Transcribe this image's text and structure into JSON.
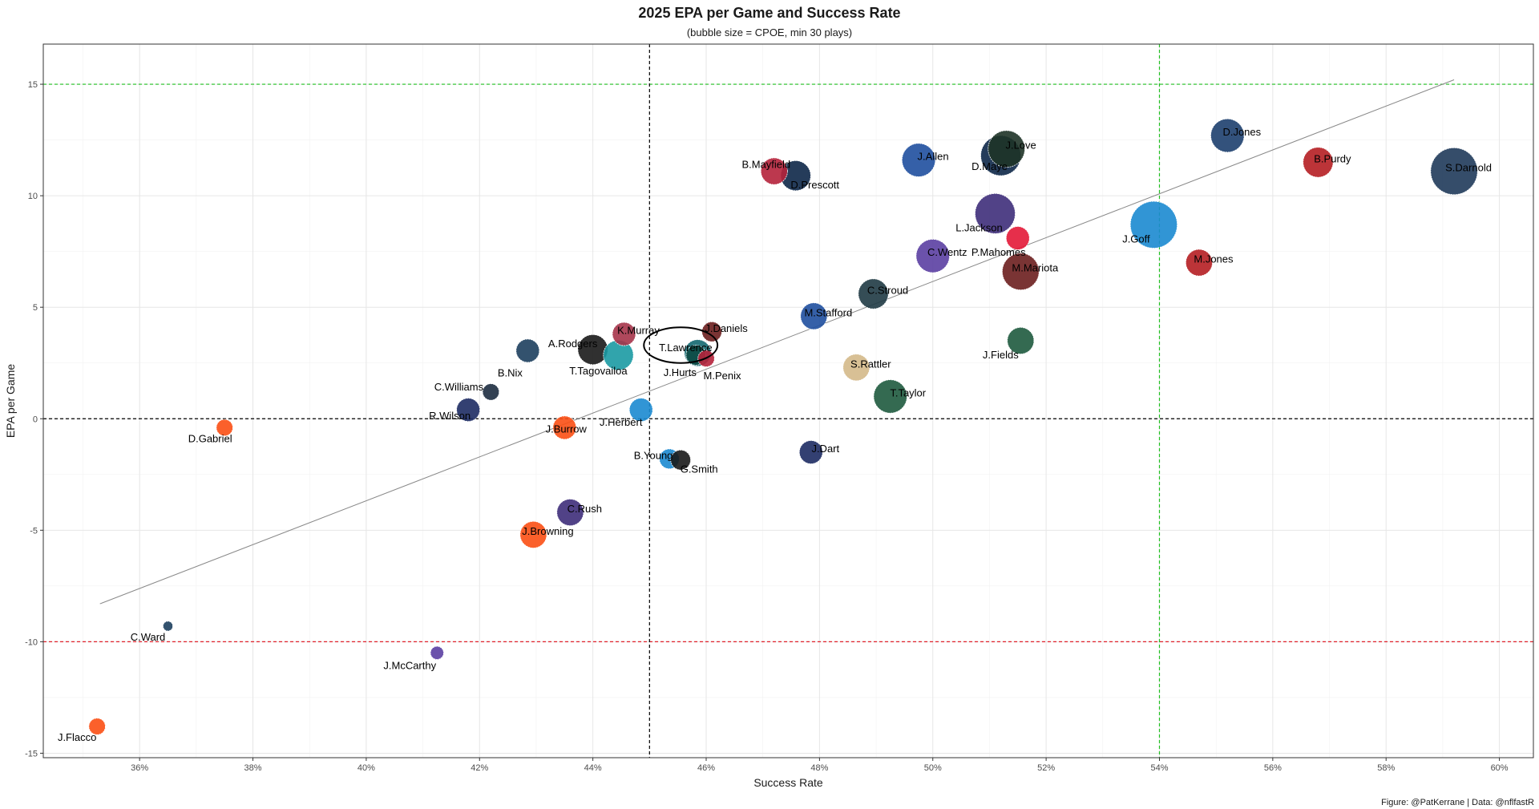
{
  "chart_data": {
    "type": "scatter",
    "title": "2025 EPA per Game and Success Rate",
    "subtitle": "(bubble size = CPOE, min 30 plays)",
    "xlabel": "Success Rate",
    "ylabel": "EPA per Game",
    "xlim": [
      0.343,
      0.606
    ],
    "ylim": [
      -15.2,
      16.8
    ],
    "x_ticks": [
      0.36,
      0.38,
      0.4,
      0.42,
      0.44,
      0.46,
      0.48,
      0.5,
      0.52,
      0.54,
      0.56,
      0.58,
      0.6
    ],
    "x_tick_labels": [
      "36%",
      "38%",
      "40%",
      "42%",
      "44%",
      "46%",
      "48%",
      "50%",
      "52%",
      "54%",
      "56%",
      "58%",
      "60%"
    ],
    "y_ticks": [
      -15,
      -10,
      -5,
      0,
      5,
      10,
      15
    ],
    "y_tick_labels": [
      "-15",
      "-10",
      "-5",
      "0",
      "5",
      "10",
      "15"
    ],
    "grid": true,
    "reference_lines": [
      {
        "axis": "y",
        "value": 15,
        "color": "#22c022",
        "style": "dashed"
      },
      {
        "axis": "y",
        "value": 0,
        "color": "#000000",
        "style": "dashed"
      },
      {
        "axis": "y",
        "value": -10,
        "color": "#e0202a",
        "style": "dashed"
      },
      {
        "axis": "x",
        "value": 0.45,
        "color": "#000000",
        "style": "dashed"
      },
      {
        "axis": "x",
        "value": 0.54,
        "color": "#22c022",
        "style": "dashed"
      }
    ],
    "trend_line": {
      "x": [
        0.353,
        0.592
      ],
      "y": [
        -8.3,
        15.2
      ],
      "color": "#888888"
    },
    "highlight": {
      "x": 0.4555,
      "y": 3.3,
      "rx_pct": 0.65,
      "ry": 0.8
    },
    "points": [
      {
        "name": "D.Jones",
        "x": 0.552,
        "y": 12.7,
        "size": 8,
        "color": "#1d3f6e"
      },
      {
        "name": "S.Darnold",
        "x": 0.592,
        "y": 11.1,
        "size": 12,
        "color": "#1f3a5a"
      },
      {
        "name": "B.Purdy",
        "x": 0.568,
        "y": 11.5,
        "size": 7,
        "color": "#b51e22"
      },
      {
        "name": "J.Love",
        "x": 0.513,
        "y": 12.1,
        "size": 9,
        "color": "#1e3327"
      },
      {
        "name": "D.Maye",
        "x": 0.512,
        "y": 11.8,
        "size": 10,
        "color": "#0d2748"
      },
      {
        "name": "J.Allen",
        "x": 0.4975,
        "y": 11.6,
        "size": 8,
        "color": "#1f4f9e"
      },
      {
        "name": "B.Mayfield",
        "x": 0.472,
        "y": 11.1,
        "size": 6,
        "color": "#b5223b"
      },
      {
        "name": "D.Prescott",
        "x": 0.4758,
        "y": 10.9,
        "size": 7,
        "color": "#0d2748"
      },
      {
        "name": "L.Jackson",
        "x": 0.511,
        "y": 9.2,
        "size": 10,
        "color": "#3e2d7a"
      },
      {
        "name": "J.Goff",
        "x": 0.539,
        "y": 8.7,
        "size": 12,
        "color": "#1b8ad0"
      },
      {
        "name": "P.Mahomes",
        "x": 0.515,
        "y": 8.1,
        "size": 5,
        "color": "#e31837"
      },
      {
        "name": "C.Wentz",
        "x": 0.5,
        "y": 7.3,
        "size": 8,
        "color": "#5b3fa2"
      },
      {
        "name": "M.Jones",
        "x": 0.547,
        "y": 7.0,
        "size": 6,
        "color": "#b51e22"
      },
      {
        "name": "M.Mariota",
        "x": 0.5155,
        "y": 6.6,
        "size": 9,
        "color": "#6b1e1e"
      },
      {
        "name": "C.Stroud",
        "x": 0.4895,
        "y": 5.6,
        "size": 7,
        "color": "#1f3a44"
      },
      {
        "name": "M.Stafford",
        "x": 0.479,
        "y": 4.6,
        "size": 6,
        "color": "#1f4f9e"
      },
      {
        "name": "J.Daniels",
        "x": 0.461,
        "y": 3.9,
        "size": 4,
        "color": "#6b1e1e"
      },
      {
        "name": "K.Murray",
        "x": 0.4455,
        "y": 3.8,
        "size": 5,
        "color": "#a6344a"
      },
      {
        "name": "A.Rodgers",
        "x": 0.44,
        "y": 3.1,
        "size": 7,
        "color": "#1a1a1a"
      },
      {
        "name": "T.Tagovailoa",
        "x": 0.4445,
        "y": 2.85,
        "size": 7,
        "color": "#1b9aa3"
      },
      {
        "name": "B.Nix",
        "x": 0.4285,
        "y": 3.05,
        "size": 5,
        "color": "#1d3f5e"
      },
      {
        "name": "T.Lawrence",
        "x": 0.4585,
        "y": 2.95,
        "size": 6,
        "color": "#136870"
      },
      {
        "name": "J.Hurts",
        "x": 0.4582,
        "y": 2.85,
        "size": 4,
        "color": "#0d4a45"
      },
      {
        "name": "M.Penix",
        "x": 0.46,
        "y": 2.7,
        "size": 3,
        "color": "#b5223b"
      },
      {
        "name": "J.Fields",
        "x": 0.5155,
        "y": 3.5,
        "size": 6,
        "color": "#1e5a3e"
      },
      {
        "name": "S.Rattler",
        "x": 0.4865,
        "y": 2.3,
        "size": 6,
        "color": "#d4b98a"
      },
      {
        "name": "T.Taylor",
        "x": 0.4925,
        "y": 1.0,
        "size": 8,
        "color": "#1e5a3e"
      },
      {
        "name": "C.Williams",
        "x": 0.422,
        "y": 1.2,
        "size": 3,
        "color": "#1d2c40"
      },
      {
        "name": "R.Wilson",
        "x": 0.418,
        "y": 0.4,
        "size": 5,
        "color": "#1d2b63"
      },
      {
        "name": "J.Herbert",
        "x": 0.4485,
        "y": 0.4,
        "size": 5,
        "color": "#1b8ad0"
      },
      {
        "name": "J.Burrow",
        "x": 0.435,
        "y": -0.4,
        "size": 5,
        "color": "#fb4f14"
      },
      {
        "name": "D.Gabriel",
        "x": 0.375,
        "y": -0.4,
        "size": 3,
        "color": "#fb4f14"
      },
      {
        "name": "J.Dart",
        "x": 0.4785,
        "y": -1.5,
        "size": 5,
        "color": "#1d2b63"
      },
      {
        "name": "B.Young",
        "x": 0.4535,
        "y": -1.8,
        "size": 4,
        "color": "#1b8ad0"
      },
      {
        "name": "G.Smith",
        "x": 0.4555,
        "y": -1.85,
        "size": 4,
        "color": "#1a1a1a"
      },
      {
        "name": "C.Rush",
        "x": 0.436,
        "y": -4.2,
        "size": 6,
        "color": "#3e2d7a"
      },
      {
        "name": "J.Browning",
        "x": 0.4295,
        "y": -5.2,
        "size": 6,
        "color": "#fb4f14"
      },
      {
        "name": "C.Ward",
        "x": 0.365,
        "y": -9.3,
        "size": 1,
        "color": "#1d3f5e"
      },
      {
        "name": "J.McCarthy",
        "x": 0.4125,
        "y": -10.5,
        "size": 2,
        "color": "#5b3fa2"
      },
      {
        "name": "J.Flacco",
        "x": 0.3525,
        "y": -13.8,
        "size": 3,
        "color": "#fb4f14"
      }
    ]
  },
  "caption": "Figure: @PatKerrane | Data: @nflfastR"
}
